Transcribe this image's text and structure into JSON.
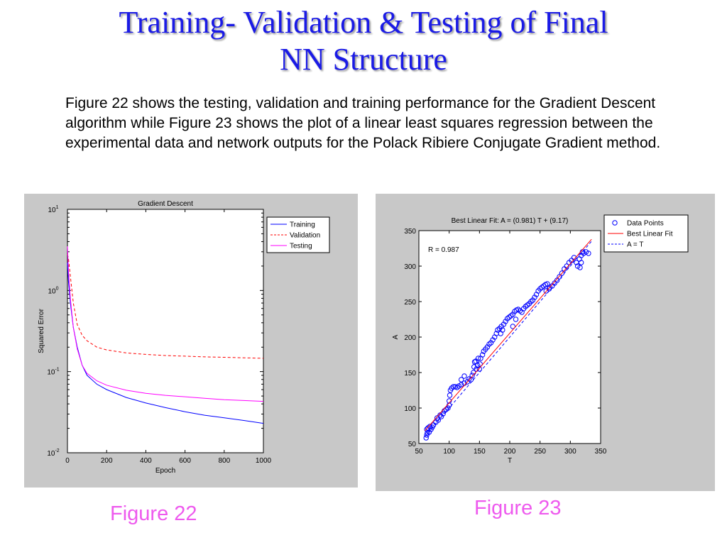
{
  "slide": {
    "title_line1": "Training- Validation & Testing of Final",
    "title_line2": "NN Structure",
    "body": "Figure 22 shows the testing, validation and training performance for the Gradient Descent algorithm while Figure 23 shows the plot of a linear least squares regression between the experimental data and network outputs for the Polack Ribiere Conjugate Gradient method.",
    "caption_left": "Figure 22",
    "caption_right": "Figure 23",
    "colors": {
      "title": "#1a1ae6",
      "caption": "#ee5aee",
      "panel": "#c8c8c8"
    }
  },
  "chart_data": [
    {
      "type": "line",
      "title": "Gradient Descent",
      "xlabel": "Epoch",
      "ylabel": "Squared Error",
      "xlim": [
        0,
        1000
      ],
      "ylim": [
        0.01,
        10
      ],
      "yscale": "log",
      "x_ticks": [
        "0",
        "200",
        "400",
        "600",
        "800",
        "1000"
      ],
      "y_ticks": [
        {
          "base": "10",
          "exp": "1"
        },
        {
          "base": "10",
          "exp": "0"
        },
        {
          "base": "10",
          "exp": "-1"
        },
        {
          "base": "10",
          "exp": "-2"
        }
      ],
      "legend_position": "top-right",
      "series": [
        {
          "name": "Training",
          "color": "#0000ff",
          "dash": "solid",
          "x": [
            0,
            5,
            15,
            30,
            50,
            75,
            100,
            150,
            200,
            300,
            400,
            500,
            600,
            700,
            800,
            900,
            1000
          ],
          "y": [
            2.2,
            1.3,
            0.7,
            0.35,
            0.2,
            0.12,
            0.09,
            0.07,
            0.06,
            0.048,
            0.041,
            0.036,
            0.032,
            0.029,
            0.027,
            0.025,
            0.023
          ]
        },
        {
          "name": "Validation",
          "color": "#ff0000",
          "dash": "dashed",
          "x": [
            0,
            5,
            15,
            30,
            50,
            75,
            100,
            150,
            200,
            300,
            400,
            500,
            600,
            700,
            800,
            900,
            1000
          ],
          "y": [
            2.8,
            2.5,
            1.5,
            0.7,
            0.38,
            0.28,
            0.24,
            0.2,
            0.185,
            0.17,
            0.163,
            0.158,
            0.155,
            0.152,
            0.15,
            0.148,
            0.146
          ]
        },
        {
          "name": "Testing",
          "color": "#ff00ff",
          "dash": "solid",
          "x": [
            0,
            5,
            15,
            30,
            50,
            75,
            100,
            150,
            200,
            300,
            400,
            500,
            600,
            700,
            800,
            900,
            1000
          ],
          "y": [
            3.5,
            1.8,
            0.8,
            0.35,
            0.19,
            0.12,
            0.095,
            0.077,
            0.068,
            0.059,
            0.054,
            0.051,
            0.049,
            0.047,
            0.045,
            0.044,
            0.043
          ]
        }
      ]
    },
    {
      "type": "scatter",
      "title": "Best Linear Fit:  A = (0.981) T + (9.17)",
      "xlabel": "T",
      "ylabel": "A",
      "xlim": [
        50,
        350
      ],
      "ylim": [
        50,
        350
      ],
      "x_ticks": [
        50,
        100,
        150,
        200,
        250,
        300,
        350
      ],
      "y_ticks": [
        50,
        100,
        150,
        200,
        250,
        300,
        350
      ],
      "annotation": "R = 0.987",
      "legend_position": "top-right",
      "legend": [
        {
          "name": "Data Points",
          "color": "#0000ff",
          "marker": "circle"
        },
        {
          "name": "Best Linear Fit",
          "color": "#ff0000",
          "dash": "solid"
        },
        {
          "name": "A = T",
          "color": "#0000ff",
          "dash": "dashed"
        }
      ],
      "fit": {
        "slope": 0.981,
        "intercept": 9.17
      },
      "points": [
        [
          62,
          58
        ],
        [
          63,
          62
        ],
        [
          63,
          70
        ],
        [
          64,
          65
        ],
        [
          65,
          72
        ],
        [
          67,
          66
        ],
        [
          68,
          74
        ],
        [
          70,
          70
        ],
        [
          72,
          73
        ],
        [
          74,
          76
        ],
        [
          78,
          80
        ],
        [
          80,
          86
        ],
        [
          82,
          83
        ],
        [
          85,
          90
        ],
        [
          87,
          88
        ],
        [
          90,
          92
        ],
        [
          92,
          96
        ],
        [
          95,
          98
        ],
        [
          98,
          100
        ],
        [
          100,
          104
        ],
        [
          100,
          110
        ],
        [
          101,
          118
        ],
        [
          102,
          125
        ],
        [
          104,
          128
        ],
        [
          107,
          130
        ],
        [
          110,
          130
        ],
        [
          113,
          129
        ],
        [
          116,
          131
        ],
        [
          120,
          133
        ],
        [
          125,
          135
        ],
        [
          130,
          137
        ],
        [
          133,
          141
        ],
        [
          136,
          140
        ],
        [
          138,
          146
        ],
        [
          140,
          150
        ],
        [
          141,
          158
        ],
        [
          142,
          165
        ],
        [
          144,
          166
        ],
        [
          147,
          160
        ],
        [
          150,
          155
        ],
        [
          151,
          162
        ],
        [
          152,
          170
        ],
        [
          155,
          175
        ],
        [
          157,
          180
        ],
        [
          160,
          183
        ],
        [
          163,
          186
        ],
        [
          166,
          190
        ],
        [
          169,
          192
        ],
        [
          172,
          196
        ],
        [
          175,
          200
        ],
        [
          178,
          205
        ],
        [
          180,
          210
        ],
        [
          183,
          212
        ],
        [
          186,
          215
        ],
        [
          190,
          218
        ],
        [
          193,
          222
        ],
        [
          196,
          226
        ],
        [
          199,
          228
        ],
        [
          202,
          230
        ],
        [
          205,
          232
        ],
        [
          208,
          236
        ],
        [
          211,
          238
        ],
        [
          214,
          239
        ],
        [
          217,
          237
        ],
        [
          220,
          235
        ],
        [
          223,
          240
        ],
        [
          226,
          243
        ],
        [
          229,
          245
        ],
        [
          232,
          247
        ],
        [
          235,
          250
        ],
        [
          238,
          252
        ],
        [
          241,
          256
        ],
        [
          244,
          260
        ],
        [
          247,
          265
        ],
        [
          250,
          268
        ],
        [
          253,
          270
        ],
        [
          256,
          272
        ],
        [
          259,
          274
        ],
        [
          262,
          275
        ],
        [
          266,
          270
        ],
        [
          270,
          272
        ],
        [
          274,
          276
        ],
        [
          278,
          280
        ],
        [
          282,
          285
        ],
        [
          286,
          290
        ],
        [
          290,
          296
        ],
        [
          294,
          300
        ],
        [
          298,
          305
        ],
        [
          302,
          308
        ],
        [
          306,
          312
        ],
        [
          310,
          305
        ],
        [
          312,
          300
        ],
        [
          315,
          310
        ],
        [
          318,
          315
        ],
        [
          320,
          320
        ],
        [
          322,
          318
        ],
        [
          326,
          320
        ],
        [
          330,
          318
        ],
        [
          318,
          305
        ],
        [
          316,
          298
        ],
        [
          145,
          155
        ],
        [
          148,
          170
        ],
        [
          120,
          140
        ],
        [
          125,
          145
        ],
        [
          185,
          205
        ],
        [
          188,
          210
        ],
        [
          260,
          265
        ],
        [
          265,
          268
        ],
        [
          210,
          225
        ],
        [
          205,
          215
        ]
      ]
    }
  ]
}
